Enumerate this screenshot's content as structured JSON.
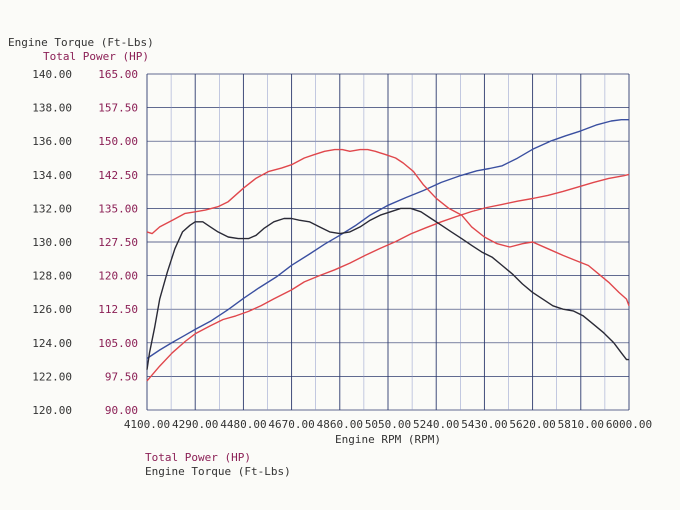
{
  "chart_data": {
    "type": "line",
    "title_torque": "Engine Torque (Ft-Lbs)",
    "title_power": "Total Power (HP)",
    "xlabel": "Engine RPM (RPM)",
    "x_ticks": [
      "4100.00",
      "4290.00",
      "4480.00",
      "4670.00",
      "4860.00",
      "5050.00",
      "5240.00",
      "5430.00",
      "5620.00",
      "5810.00",
      "6000.00"
    ],
    "torque_axis_ticks": [
      "140.00",
      "138.00",
      "136.00",
      "134.00",
      "132.00",
      "130.00",
      "128.00",
      "126.00",
      "124.00",
      "122.00",
      "120.00"
    ],
    "power_axis_ticks": [
      "165.00",
      "157.50",
      "150.00",
      "142.50",
      "135.00",
      "127.50",
      "120.00",
      "112.50",
      "105.00",
      "97.50",
      "90.00"
    ],
    "xlim": [
      4100,
      6000
    ],
    "torque_ylim": [
      120,
      140
    ],
    "power_ylim": [
      90,
      165
    ],
    "legend": [
      "Total Power (HP)",
      "Engine Torque (Ft-Lbs)"
    ],
    "colors": {
      "torque_axis": "#333333",
      "power_axis": "#8b1f55",
      "red_series": "#e0474c",
      "blue_series": "#3a4fa0",
      "black_series": "#2a2a36",
      "grid": "#2d3a6e"
    },
    "series": [
      {
        "color": "red",
        "axis": "torque",
        "x": [
          4100,
          4120,
          4150,
          4200,
          4250,
          4290,
          4330,
          4380,
          4420,
          4480,
          4530,
          4580,
          4630,
          4670,
          4720,
          4760,
          4800,
          4840,
          4870,
          4900,
          4940,
          4970,
          5000,
          5040,
          5080,
          5110,
          5150,
          5190,
          5240,
          5290,
          5340,
          5380,
          5430,
          5480,
          5530,
          5580,
          5620,
          5680,
          5740,
          5790,
          5840,
          5880,
          5920,
          5960,
          5990,
          6000
        ],
        "y": [
          130.6,
          130.5,
          130.9,
          131.3,
          131.7,
          131.8,
          131.9,
          132.1,
          132.4,
          133.2,
          133.8,
          134.2,
          134.4,
          134.6,
          135.0,
          135.2,
          135.4,
          135.5,
          135.5,
          135.4,
          135.5,
          135.5,
          135.4,
          135.2,
          135.0,
          134.7,
          134.2,
          133.4,
          132.6,
          132.0,
          131.6,
          130.9,
          130.3,
          129.9,
          129.7,
          129.9,
          130.0,
          129.6,
          129.2,
          128.9,
          128.6,
          128.1,
          127.6,
          127.0,
          126.6,
          126.2
        ]
      },
      {
        "color": "black",
        "axis": "torque",
        "x": [
          4100,
          4110,
          4130,
          4150,
          4180,
          4210,
          4240,
          4270,
          4290,
          4320,
          4350,
          4380,
          4420,
          4460,
          4500,
          4530,
          4560,
          4600,
          4640,
          4670,
          4700,
          4740,
          4780,
          4820,
          4860,
          4900,
          4940,
          4980,
          5020,
          5060,
          5100,
          5140,
          5180,
          5220,
          5260,
          5300,
          5340,
          5380,
          5420,
          5460,
          5500,
          5540,
          5580,
          5620,
          5660,
          5700,
          5740,
          5780,
          5820,
          5860,
          5900,
          5940,
          5970,
          5990,
          6000
        ],
        "y": [
          122.4,
          123.4,
          124.9,
          126.6,
          128.2,
          129.6,
          130.6,
          131.0,
          131.2,
          131.2,
          130.9,
          130.6,
          130.3,
          130.2,
          130.2,
          130.4,
          130.8,
          131.2,
          131.4,
          131.4,
          131.3,
          131.2,
          130.9,
          130.6,
          130.5,
          130.6,
          130.9,
          131.3,
          131.6,
          131.8,
          132.0,
          132.0,
          131.8,
          131.4,
          131.0,
          130.6,
          130.2,
          129.8,
          129.4,
          129.1,
          128.6,
          128.1,
          127.5,
          127.0,
          126.6,
          126.2,
          126.0,
          125.9,
          125.6,
          125.1,
          124.6,
          124.0,
          123.4,
          123.0,
          123.0
        ]
      }
    ],
    "power_series": {
      "color": "red",
      "axis": "power",
      "x": [
        4100,
        4150,
        4200,
        4250,
        4290,
        4350,
        4400,
        4450,
        4500,
        4550,
        4600,
        4670,
        4720,
        4780,
        4840,
        4900,
        4960,
        5020,
        5080,
        5140,
        5200,
        5260,
        5320,
        5380,
        5440,
        5500,
        5560,
        5620,
        5680,
        5740,
        5800,
        5860,
        5920,
        5980,
        6000
      ],
      "y": [
        96.5,
        99.8,
        102.8,
        105.3,
        107.0,
        108.8,
        110.2,
        111.0,
        112.0,
        113.3,
        114.8,
        116.8,
        118.6,
        120.0,
        121.3,
        122.8,
        124.5,
        126.1,
        127.6,
        129.3,
        130.7,
        132.0,
        133.2,
        134.3,
        135.2,
        135.9,
        136.6,
        137.2,
        137.9,
        138.8,
        139.8,
        140.8,
        141.7,
        142.3,
        142.6
      ]
    },
    "power_series_blue": {
      "color": "blue",
      "axis": "power",
      "x": [
        4100,
        4150,
        4200,
        4250,
        4290,
        4350,
        4420,
        4480,
        4540,
        4610,
        4670,
        4740,
        4800,
        4860,
        4920,
        4980,
        5050,
        5120,
        5190,
        5260,
        5330,
        5400,
        5450,
        5500,
        5560,
        5620,
        5690,
        5750,
        5810,
        5870,
        5930,
        5970,
        5990,
        6000
      ],
      "y": [
        101.5,
        103.4,
        105.1,
        106.7,
        108.0,
        109.8,
        112.4,
        114.9,
        117.2,
        119.7,
        122.3,
        124.8,
        127.0,
        129.0,
        131.1,
        133.5,
        135.7,
        137.4,
        139.0,
        140.8,
        142.2,
        143.4,
        143.9,
        144.5,
        146.2,
        148.2,
        150.0,
        151.2,
        152.3,
        153.6,
        154.5,
        154.8,
        154.8,
        154.8
      ]
    }
  }
}
